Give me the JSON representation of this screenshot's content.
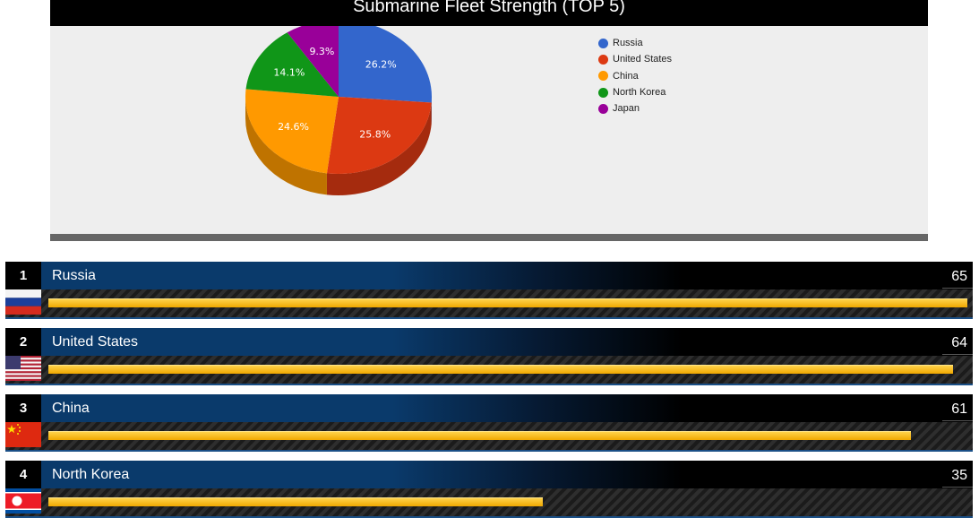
{
  "chart_data": {
    "type": "pie",
    "title": "Submarine Fleet Strength (TOP 5)",
    "categories": [
      "Russia",
      "United States",
      "China",
      "North Korea",
      "Japan"
    ],
    "values": [
      26.2,
      25.8,
      24.6,
      14.1,
      9.3
    ],
    "labels": [
      "26.2%",
      "25.8%",
      "24.6%",
      "14.1%",
      "9.3%"
    ],
    "colors": [
      "#3366cc",
      "#dc3912",
      "#ff9900",
      "#109618",
      "#990099"
    ],
    "legend_position": "right",
    "style": "3d"
  },
  "ranking": [
    {
      "rank": "1",
      "country": "Russia",
      "value": "65",
      "score": 65,
      "flag": "russia-flag"
    },
    {
      "rank": "2",
      "country": "United States",
      "value": "64",
      "score": 64,
      "flag": "usa-flag"
    },
    {
      "rank": "3",
      "country": "China",
      "value": "61",
      "score": 61,
      "flag": "china-flag"
    },
    {
      "rank": "4",
      "country": "North Korea",
      "value": "35",
      "score": 35,
      "flag": "north-korea-flag"
    }
  ],
  "ranking_max": 65,
  "ranking_bar_color": "#f5b800"
}
